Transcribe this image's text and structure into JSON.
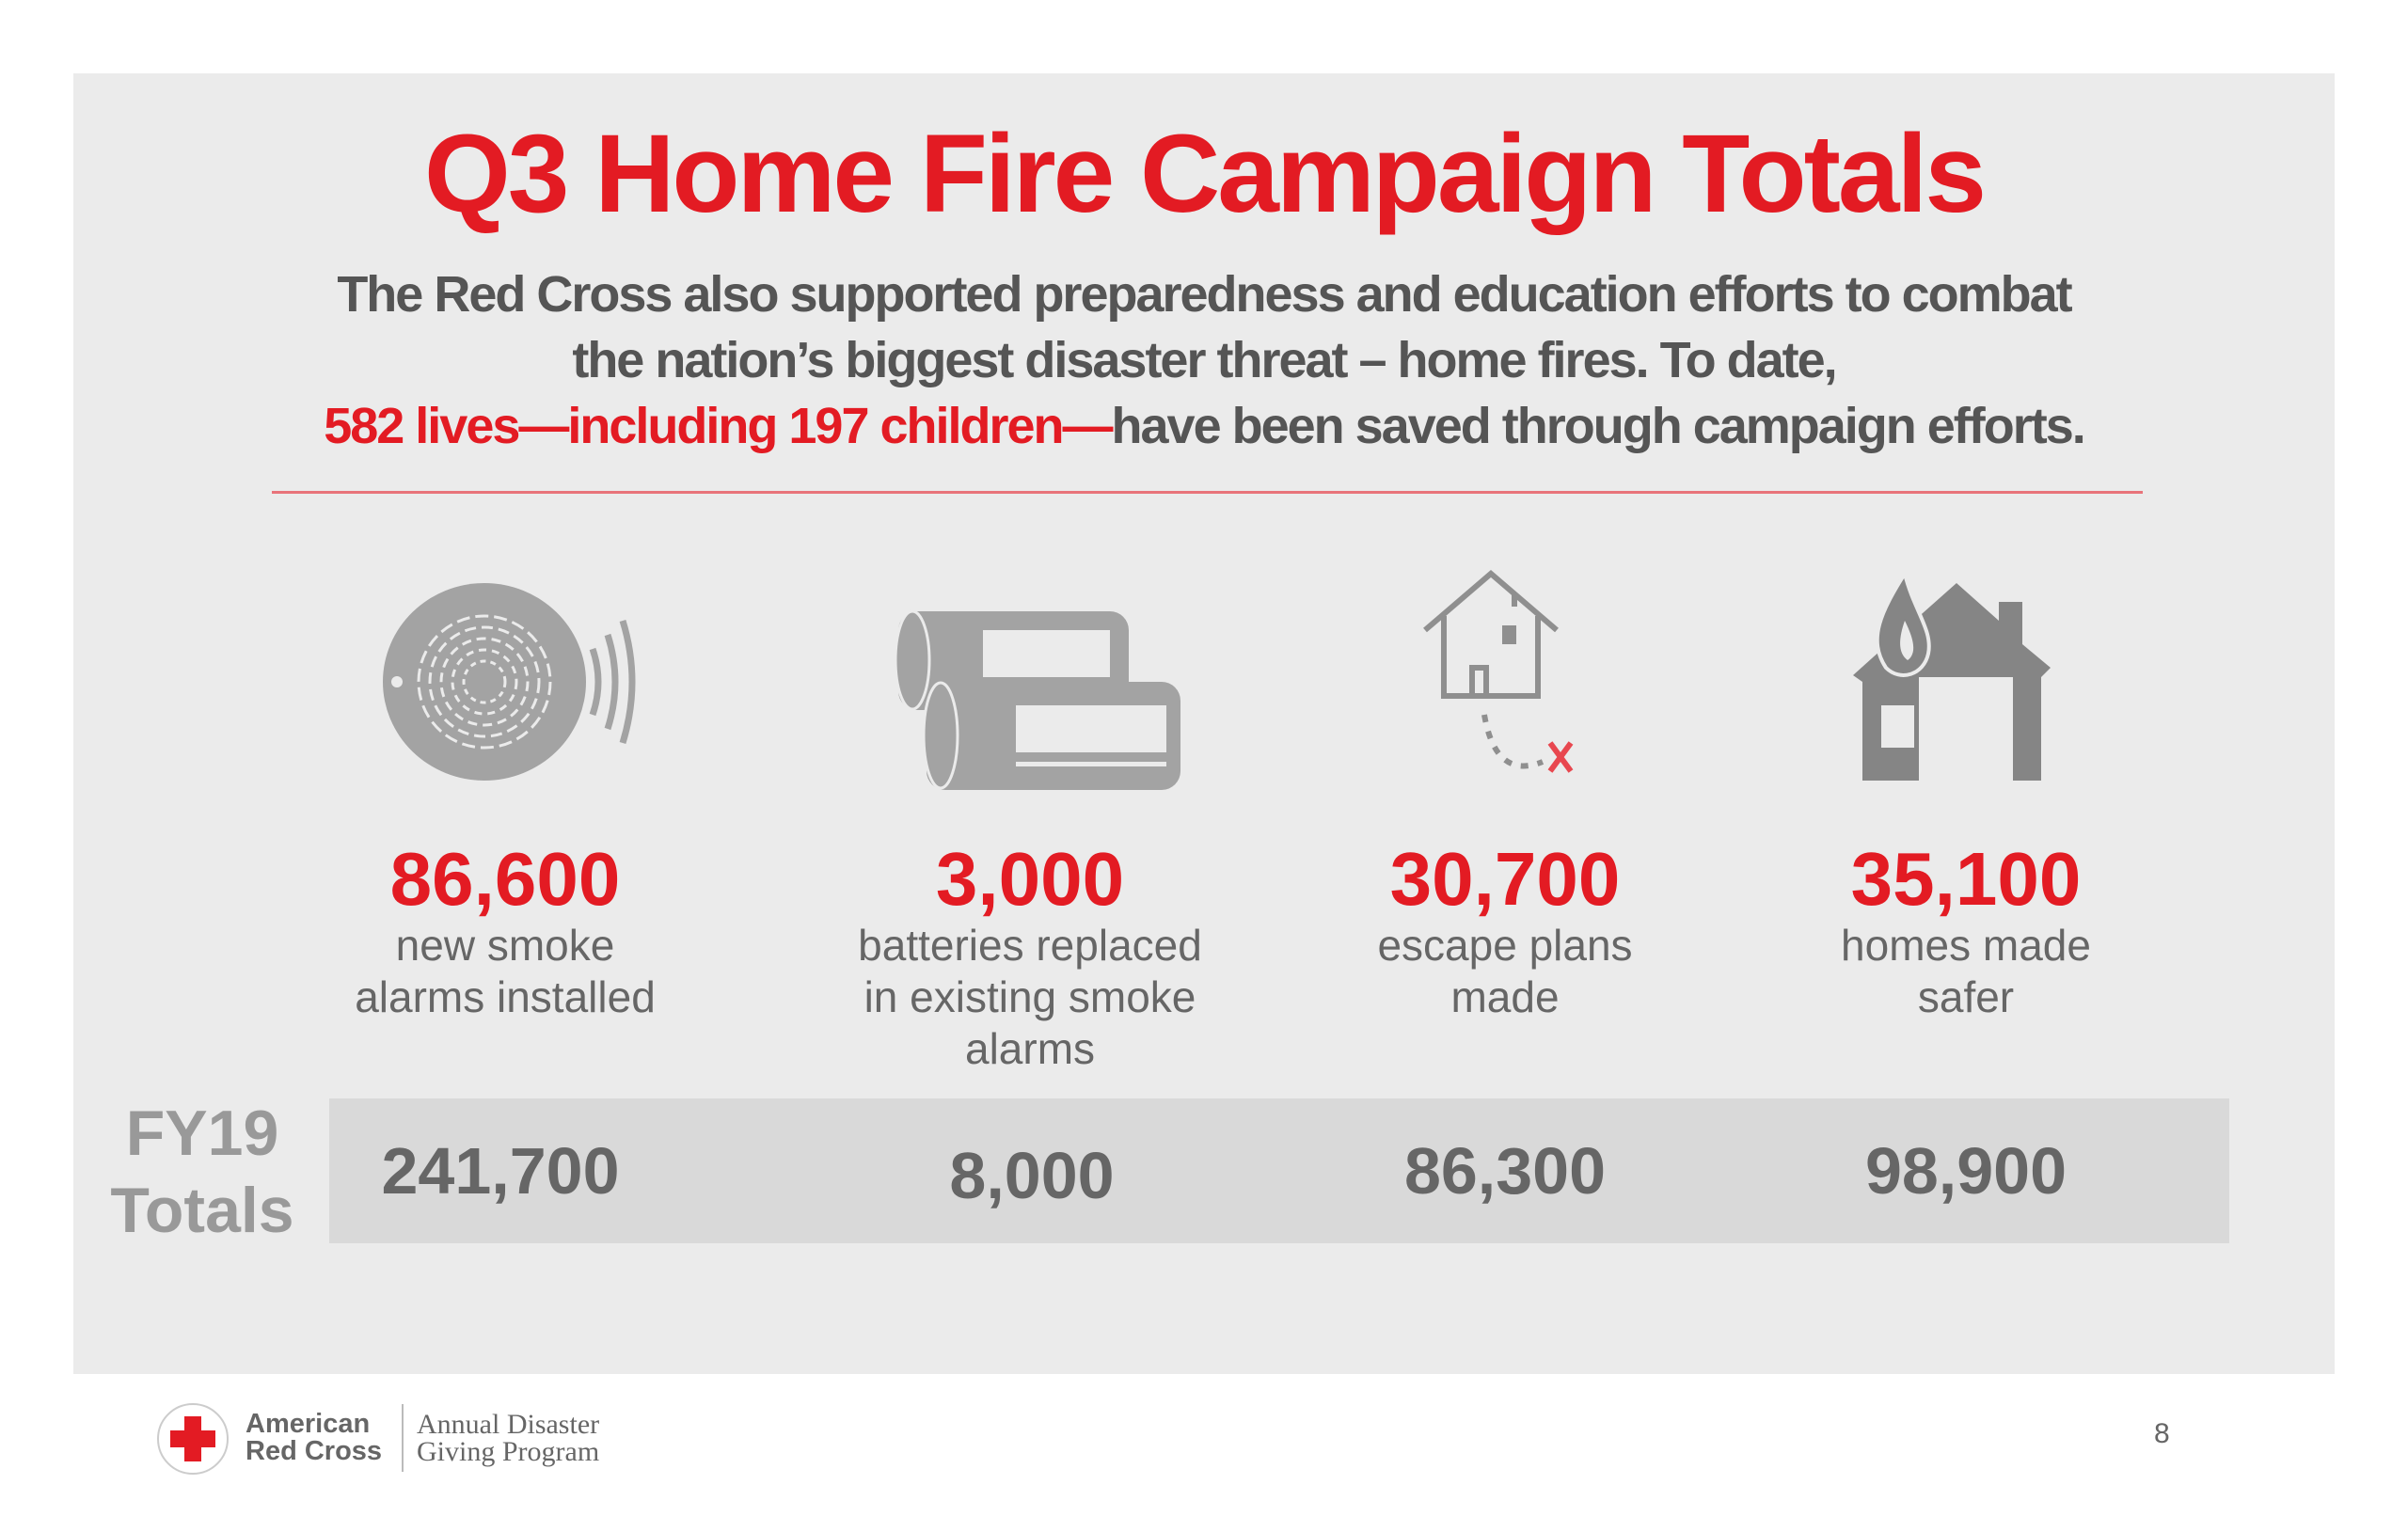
{
  "title": "Q3 Home Fire Campaign Totals",
  "subtitle": {
    "line1": "The Red Cross also supported preparedness and education efforts to combat",
    "line2": "the nation’s biggest disaster threat – home fires. To date,",
    "line3_highlight": "582 lives—including 197 children—",
    "line3_rest": "have been saved through campaign efforts."
  },
  "stats": [
    {
      "icon": "smoke-alarm-icon",
      "value": "86,600",
      "label1": "new smoke",
      "label2": "alarms installed",
      "label3": ""
    },
    {
      "icon": "batteries-icon",
      "value": "3,000",
      "label1": "batteries replaced",
      "label2": "in existing smoke",
      "label3": "alarms"
    },
    {
      "icon": "escape-plan-house-icon",
      "value": "30,700",
      "label1": "escape plans",
      "label2": "made",
      "label3": ""
    },
    {
      "icon": "house-fire-icon",
      "value": "35,100",
      "label1": "homes made",
      "label2": "safer",
      "label3": ""
    }
  ],
  "fy19": {
    "label1": "FY19",
    "label2": "Totals",
    "values": [
      "241,700",
      "8,000",
      "86,300",
      "98,900"
    ]
  },
  "footer": {
    "logo_line1": "American",
    "logo_line2": "Red Cross",
    "program_line1": "Annual Disaster",
    "program_line2": "Giving Program",
    "page_number": "8"
  },
  "colors": {
    "accent": "#e31b23",
    "panel": "#ebebeb",
    "icon": "#8a8a8a"
  }
}
